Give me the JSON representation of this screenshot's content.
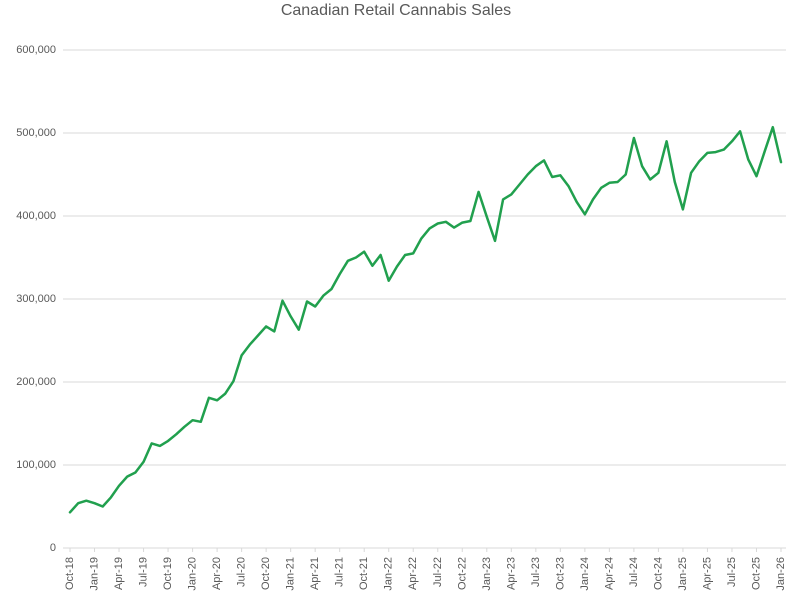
{
  "chart_data": {
    "type": "line",
    "title": "Canadian Retail Cannabis Sales",
    "legend": "none",
    "grid": "horizontal",
    "ylim": [
      0,
      600000
    ],
    "y_ticks": [
      0,
      100000,
      200000,
      300000,
      400000,
      500000,
      600000
    ],
    "y_tick_labels": [
      "0",
      "100,000",
      "200,000",
      "300,000",
      "400,000",
      "500,000",
      "600,000"
    ],
    "x_tick_labels": [
      "Oct-18",
      "Jan-19",
      "Apr-19",
      "Jul-19",
      "Oct-19",
      "Jan-20",
      "Apr-20",
      "Jul-20",
      "Oct-20",
      "Jan-21",
      "Apr-21",
      "Jul-21",
      "Oct-21",
      "Jan-22",
      "Apr-22",
      "Jul-22",
      "Oct-22",
      "Jan-23",
      "Apr-23",
      "Jul-23",
      "Oct-23",
      "Jan-24",
      "Apr-24",
      "Jul-24",
      "Oct-24",
      "Jan-25",
      "Apr-25",
      "Jul-25",
      "Oct-25",
      "Jan-26"
    ],
    "x": [
      "Oct-18",
      "Nov-18",
      "Dec-18",
      "Jan-19",
      "Feb-19",
      "Mar-19",
      "Apr-19",
      "May-19",
      "Jun-19",
      "Jul-19",
      "Aug-19",
      "Sep-19",
      "Oct-19",
      "Nov-19",
      "Dec-19",
      "Jan-20",
      "Feb-20",
      "Mar-20",
      "Apr-20",
      "May-20",
      "Jun-20",
      "Jul-20",
      "Aug-20",
      "Sep-20",
      "Oct-20",
      "Nov-20",
      "Dec-20",
      "Jan-21",
      "Feb-21",
      "Mar-21",
      "Apr-21",
      "May-21",
      "Jun-21",
      "Jul-21",
      "Aug-21",
      "Sep-21",
      "Oct-21",
      "Nov-21",
      "Dec-21",
      "Jan-22",
      "Feb-22",
      "Mar-22",
      "Apr-22",
      "May-22",
      "Jun-22",
      "Jul-22",
      "Aug-22",
      "Sep-22",
      "Oct-22",
      "Nov-22",
      "Dec-22",
      "Jan-23",
      "Feb-23",
      "Mar-23",
      "Apr-23",
      "May-23",
      "Jun-23",
      "Jul-23",
      "Aug-23",
      "Sep-23",
      "Oct-23",
      "Nov-23",
      "Dec-23",
      "Jan-24",
      "Feb-24",
      "Mar-24",
      "Apr-24",
      "May-24",
      "Jun-24",
      "Jul-24",
      "Aug-24",
      "Sep-24",
      "Oct-24",
      "Nov-24",
      "Dec-24",
      "Jan-25",
      "Feb-25",
      "Mar-25",
      "Apr-25",
      "May-25",
      "Jun-25",
      "Jul-25",
      "Aug-25",
      "Sep-25",
      "Oct-25",
      "Nov-25",
      "Dec-25",
      "Jan-26"
    ],
    "values": [
      43000,
      54000,
      57000,
      54000,
      50000,
      61000,
      75000,
      86000,
      91000,
      104000,
      126000,
      123000,
      129000,
      137000,
      146000,
      154000,
      152000,
      181000,
      178000,
      186000,
      201000,
      232000,
      245000,
      256000,
      267000,
      261000,
      298000,
      279000,
      263000,
      297000,
      291000,
      304000,
      312000,
      330000,
      346000,
      350000,
      357000,
      340000,
      353000,
      322000,
      339000,
      353000,
      355000,
      373000,
      385000,
      391000,
      393000,
      386000,
      392000,
      394000,
      429000,
      399000,
      370000,
      420000,
      426000,
      438000,
      450000,
      460000,
      467000,
      447000,
      449000,
      436000,
      417000,
      402000,
      420000,
      434000,
      440000,
      441000,
      450000,
      494000,
      460000,
      444000,
      452000,
      490000,
      441000,
      408000,
      452000,
      466000,
      476000,
      477000,
      480000,
      490000,
      502000,
      468000,
      448000,
      478000,
      507000,
      465000
    ],
    "line_color": "#21a04e",
    "gridline_color": "#d9d9d9",
    "axis_color": "#d9d9d9",
    "text_color": "#595959"
  }
}
